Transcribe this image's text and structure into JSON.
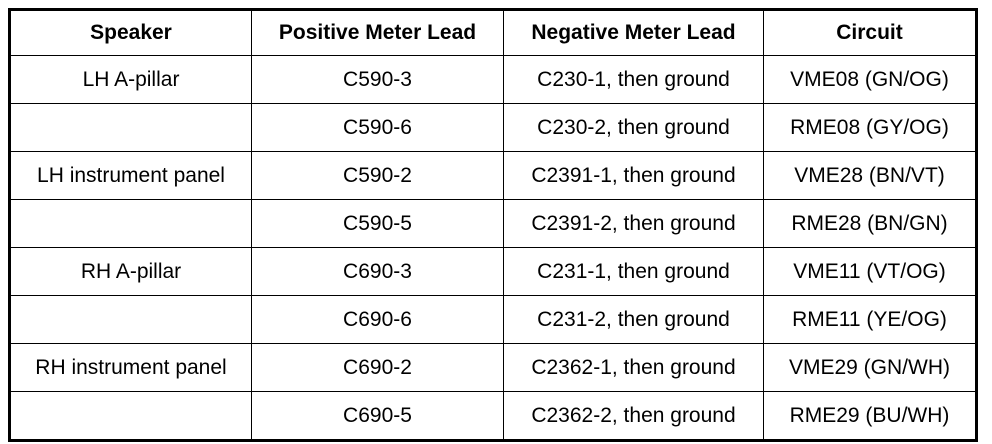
{
  "table": {
    "headers": [
      "Speaker",
      "Positive Meter Lead",
      "Negative Meter Lead",
      "Circuit"
    ],
    "rows": [
      {
        "speaker": "LH A-pillar",
        "positive": "C590-3",
        "negative": "C230-1, then ground",
        "circuit": "VME08 (GN/OG)"
      },
      {
        "positive": "C590-6",
        "negative": "C230-2, then ground",
        "circuit": "RME08 (GY/OG)"
      },
      {
        "speaker": "LH instrument panel",
        "positive": "C590-2",
        "negative": "C2391-1, then ground",
        "circuit": "VME28 (BN/VT)"
      },
      {
        "positive": "C590-5",
        "negative": "C2391-2, then ground",
        "circuit": "RME28 (BN/GN)"
      },
      {
        "speaker": "RH A-pillar",
        "positive": "C690-3",
        "negative": "C231-1, then ground",
        "circuit": "VME11 (VT/OG)"
      },
      {
        "positive": "C690-6",
        "negative": "C231-2, then ground",
        "circuit": "RME11 (YE/OG)"
      },
      {
        "speaker": "RH instrument panel",
        "positive": "C690-2",
        "negative": "C2362-1, then ground",
        "circuit": "VME29 (GN/WH)"
      },
      {
        "positive": "C690-5",
        "negative": "C2362-2, then ground",
        "circuit": "RME29 (BU/WH)"
      }
    ]
  }
}
